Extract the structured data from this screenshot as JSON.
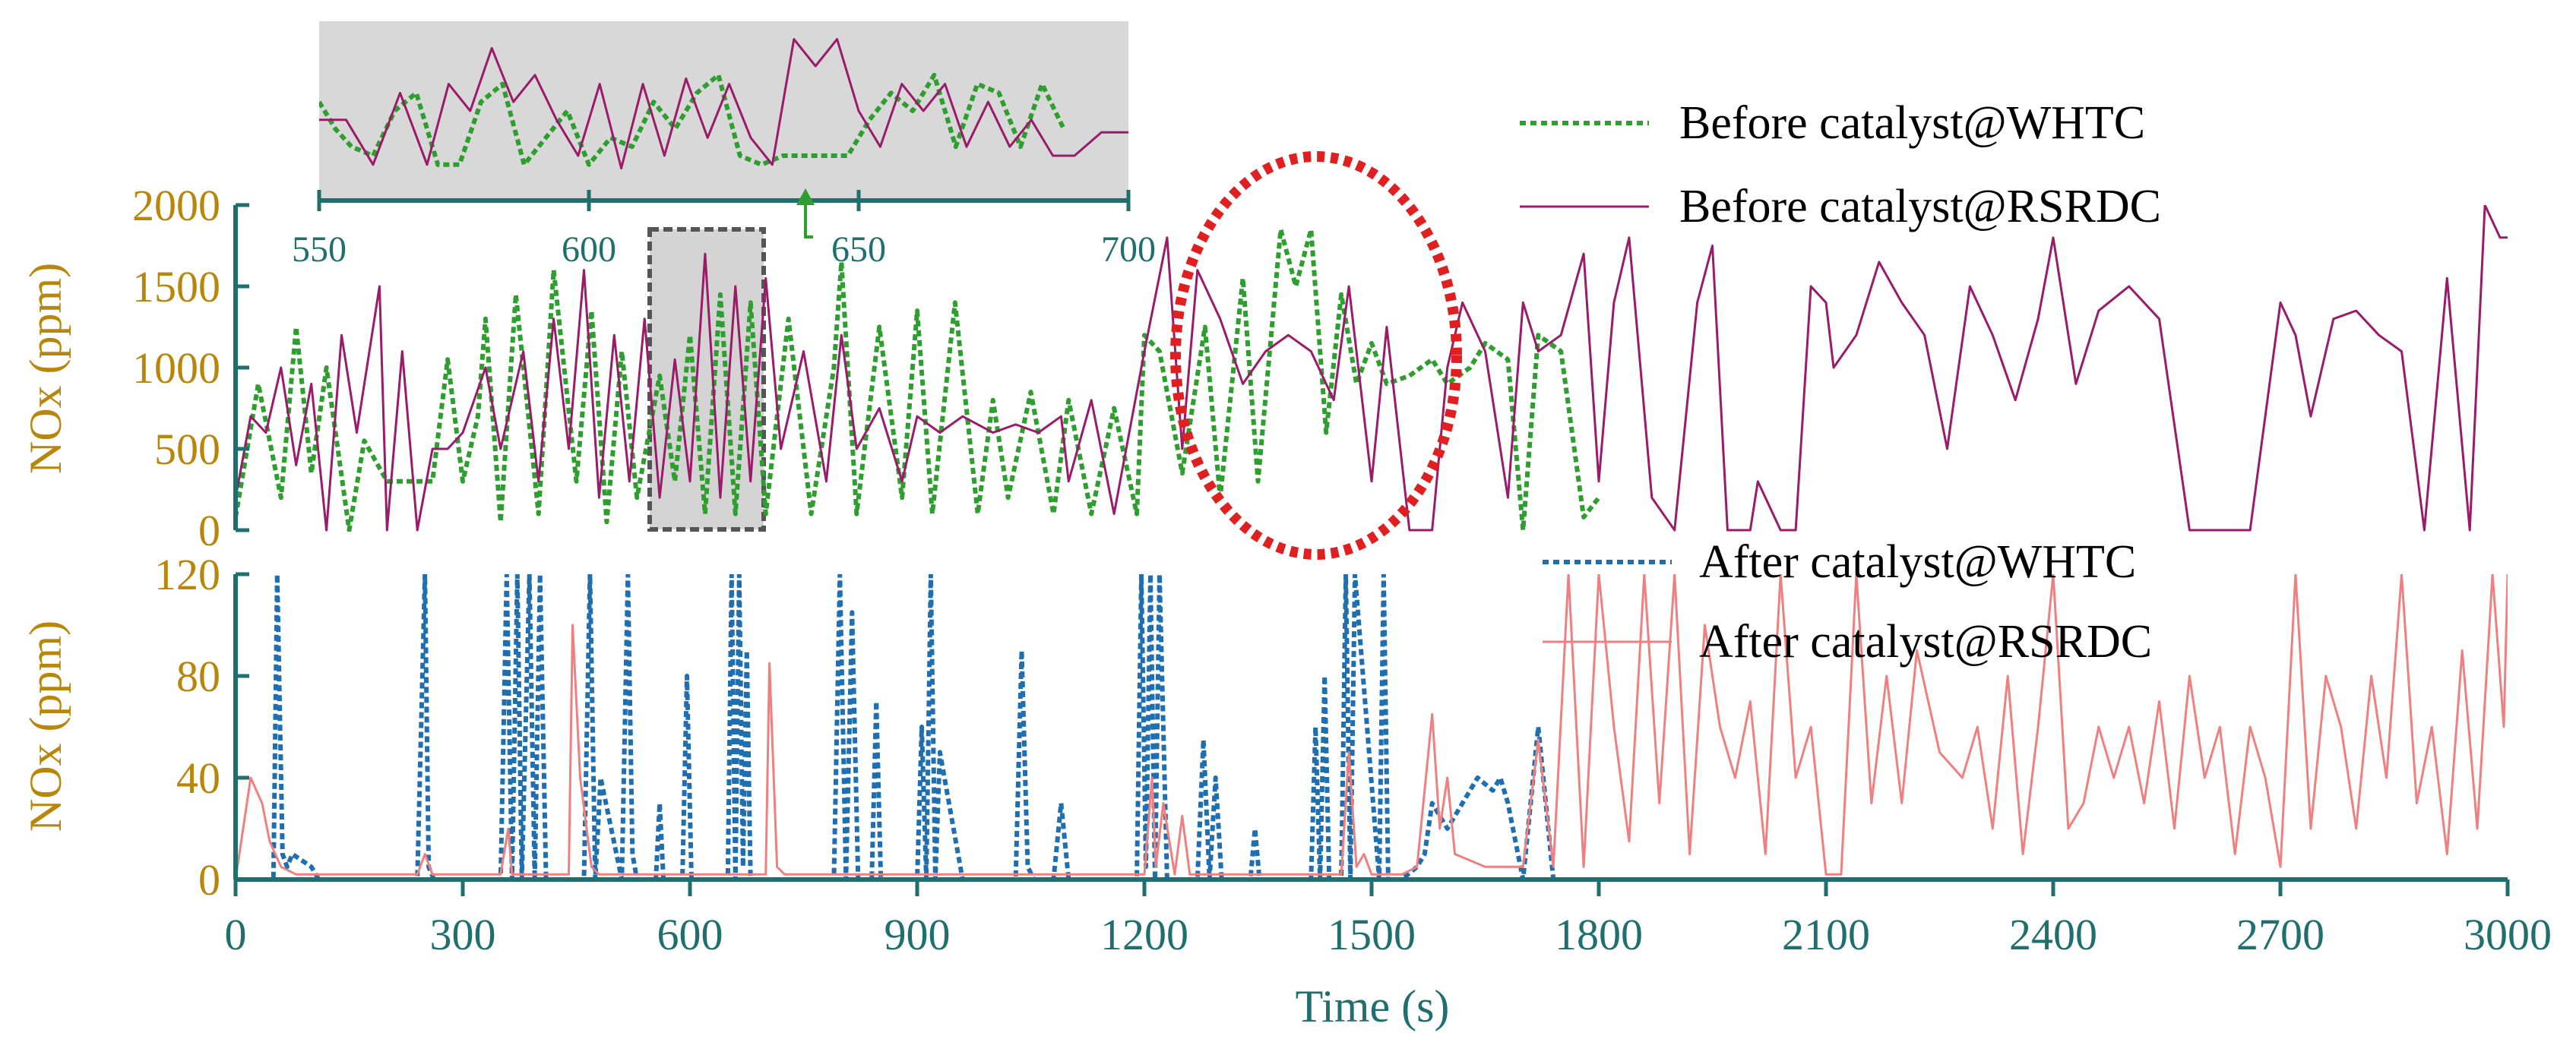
{
  "colors": {
    "whtc_before": "#2e9e2e",
    "rsrdc_before": "#9b1b6b",
    "whtc_after": "#1f6fb0",
    "rsrdc_after": "#f08080",
    "axis": "#1f6f6f",
    "ylabel": "#b8860b",
    "highlight": "#e02020",
    "inset_bg": "#d8d8d8"
  },
  "chart_data": [
    {
      "type": "line",
      "panel": "top",
      "ylabel": "NOx (ppm)",
      "ylim": [
        0,
        2000
      ],
      "yticks": [
        "0",
        "500",
        "1000",
        "1500",
        "2000"
      ],
      "xlim": [
        0,
        3000
      ],
      "series": [
        {
          "name": "Before catalyst@WHTC",
          "style": "dotted",
          "x": [
            0,
            30,
            60,
            80,
            100,
            120,
            150,
            170,
            200,
            230,
            260,
            280,
            300,
            320,
            330,
            350,
            370,
            400,
            420,
            450,
            470,
            490,
            510,
            530,
            560,
            580,
            600,
            620,
            640,
            660,
            680,
            700,
            730,
            760,
            790,
            800,
            820,
            850,
            880,
            900,
            920,
            950,
            980,
            1000,
            1020,
            1050,
            1080,
            1100,
            1130,
            1160,
            1190,
            1200,
            1220,
            1250,
            1280,
            1300,
            1330,
            1350,
            1380,
            1400,
            1420,
            1440,
            1460,
            1480,
            1500,
            1520,
            1550,
            1580,
            1600,
            1630,
            1650,
            1680,
            1700,
            1720,
            1750,
            1780,
            1800
          ],
          "y": [
            80,
            900,
            200,
            1250,
            350,
            1000,
            0,
            550,
            300,
            300,
            300,
            1050,
            300,
            700,
            1300,
            50,
            1450,
            100,
            1600,
            300,
            1350,
            50,
            1100,
            200,
            950,
            300,
            1200,
            100,
            1450,
            100,
            1400,
            100,
            1300,
            100,
            1000,
            1650,
            100,
            1250,
            200,
            1350,
            100,
            1400,
            100,
            800,
            200,
            850,
            100,
            800,
            100,
            750,
            100,
            1200,
            1100,
            350,
            1250,
            200,
            1550,
            300,
            1850,
            1500,
            1850,
            600,
            1450,
            900,
            1150,
            900,
            950,
            1050,
            900,
            1000,
            1150,
            1050,
            0,
            1200,
            1100,
            80,
            200
          ]
        },
        {
          "name": "Before catalyst@RSRDC",
          "style": "solid",
          "x": [
            0,
            20,
            40,
            60,
            80,
            100,
            120,
            140,
            160,
            190,
            200,
            220,
            240,
            260,
            280,
            300,
            330,
            350,
            380,
            400,
            420,
            440,
            460,
            480,
            500,
            520,
            540,
            560,
            580,
            600,
            620,
            640,
            660,
            680,
            700,
            720,
            750,
            780,
            800,
            820,
            850,
            880,
            900,
            930,
            960,
            1000,
            1030,
            1060,
            1090,
            1100,
            1130,
            1160,
            1200,
            1230,
            1250,
            1270,
            1300,
            1330,
            1360,
            1390,
            1420,
            1450,
            1470,
            1500,
            1520,
            1550,
            1580,
            1600,
            1620,
            1650,
            1680,
            1700,
            1720,
            1750,
            1780,
            1800,
            1820,
            1840,
            1870,
            1900,
            1930,
            1950,
            1970,
            2000,
            2010,
            2040,
            2060,
            2080,
            2100,
            2110,
            2140,
            2170,
            2200,
            2230,
            2260,
            2290,
            2320,
            2350,
            2380,
            2400,
            2430,
            2460,
            2500,
            2540,
            2580,
            2620,
            2660,
            2700,
            2720,
            2740,
            2770,
            2800,
            2830,
            2860,
            2890,
            2920,
            2950,
            2970,
            2990,
            3000
          ],
          "y": [
            200,
            700,
            600,
            1000,
            400,
            900,
            0,
            1200,
            600,
            1500,
            0,
            1100,
            0,
            500,
            500,
            600,
            1000,
            500,
            1100,
            300,
            1300,
            500,
            1600,
            200,
            1200,
            300,
            1300,
            200,
            1050,
            300,
            1700,
            200,
            1500,
            300,
            1550,
            500,
            1100,
            300,
            1200,
            500,
            750,
            300,
            700,
            600,
            700,
            600,
            650,
            600,
            700,
            300,
            800,
            100,
            1100,
            1800,
            500,
            1600,
            1300,
            900,
            1100,
            1200,
            1100,
            800,
            1500,
            300,
            1250,
            0,
            0,
            1000,
            1400,
            1100,
            200,
            1400,
            1100,
            1200,
            1700,
            300,
            1400,
            1800,
            200,
            0,
            1400,
            1750,
            0,
            0,
            300,
            0,
            0,
            1500,
            1400,
            1000,
            1200,
            1650,
            1400,
            1200,
            500,
            1500,
            1200,
            800,
            1300,
            1800,
            900,
            1350,
            1500,
            1300,
            0,
            0,
            0,
            1400,
            1200,
            700,
            1300,
            1350,
            1200,
            1100,
            0,
            1550,
            0,
            2000,
            1800,
            1800
          ]
        }
      ],
      "inset": {
        "xlim": [
          550,
          700
        ],
        "xticks": [
          "550",
          "600",
          "650",
          "700"
        ],
        "series": [
          {
            "name": "Before catalyst@WHTC",
            "style": "dotted",
            "x": [
              550,
              553,
              556,
              560,
              564,
              568,
              572,
              576,
              580,
              584,
              588,
              592,
              596,
              600,
              604,
              608,
              612,
              616,
              620,
              624,
              628,
              632,
              636,
              640,
              644,
              648,
              652,
              656,
              660,
              664,
              668,
              672,
              676,
              680,
              684,
              688
            ],
            "y": [
              5.5,
              4.0,
              3.0,
              2.5,
              5.0,
              6.0,
              2.0,
              2.0,
              5.5,
              6.5,
              2.0,
              3.5,
              5.0,
              2.0,
              3.5,
              3.0,
              5.5,
              4.0,
              6.0,
              7.0,
              2.5,
              2.0,
              2.5,
              2.5,
              2.5,
              2.5,
              4.5,
              6.0,
              5.0,
              7.0,
              3.0,
              6.5,
              6.0,
              3.0,
              6.5,
              4.0
            ]
          },
          {
            "name": "Before catalyst@RSRDC",
            "style": "solid",
            "x": [
              550,
              555,
              560,
              565,
              570,
              574,
              578,
              582,
              586,
              590,
              594,
              598,
              602,
              606,
              610,
              614,
              618,
              622,
              626,
              630,
              634,
              638,
              642,
              646,
              650,
              654,
              658,
              662,
              666,
              670,
              674,
              678,
              682,
              686,
              690,
              695,
              700
            ],
            "y": [
              4.5,
              4.5,
              2.0,
              6.0,
              2.0,
              6.5,
              5.0,
              8.5,
              5.5,
              7.0,
              4.5,
              2.5,
              6.5,
              1.8,
              6.5,
              2.5,
              6.8,
              3.5,
              6.5,
              3.5,
              2.0,
              9.0,
              7.5,
              9.0,
              5.0,
              3.0,
              6.5,
              5.0,
              6.5,
              3.0,
              5.5,
              3.0,
              4.5,
              2.5,
              2.5,
              3.8,
              3.8
            ]
          }
        ]
      }
    },
    {
      "type": "line",
      "panel": "bottom",
      "ylabel": "NOx (ppm)",
      "ylim": [
        0,
        120
      ],
      "yticks": [
        "0",
        "40",
        "80",
        "120"
      ],
      "xlabel": "Time (s)",
      "xlim": [
        0,
        3000
      ],
      "xticks": [
        "0",
        "300",
        "600",
        "900",
        "1200",
        "1500",
        "1800",
        "2100",
        "2400",
        "2700",
        "3000"
      ],
      "series": [
        {
          "name": "After catalyst@WHTC",
          "style": "dotted",
          "x": [
            0,
            50,
            55,
            62,
            68,
            75,
            100,
            110,
            240,
            250,
            255,
            262,
            350,
            358,
            365,
            372,
            378,
            388,
            395,
            402,
            410,
            460,
            468,
            475,
            482,
            510,
            518,
            524,
            530,
            555,
            560,
            565,
            590,
            596,
            602,
            630,
            650,
            655,
            660,
            665,
            670,
            675,
            680,
            700,
            790,
            798,
            806,
            814,
            822,
            840,
            846,
            852,
            900,
            906,
            912,
            918,
            924,
            930,
            960,
            1030,
            1038,
            1046,
            1054,
            1080,
            1090,
            1100,
            1190,
            1196,
            1202,
            1208,
            1214,
            1220,
            1230,
            1270,
            1278,
            1286,
            1294,
            1302,
            1340,
            1346,
            1352,
            1420,
            1426,
            1432,
            1438,
            1444,
            1450,
            1460,
            1466,
            1472,
            1478,
            1510,
            1516,
            1522,
            1540,
            1560,
            1570,
            1580,
            1600,
            1620,
            1640,
            1660,
            1670,
            1680,
            1700,
            1720,
            1740,
            1760,
            1800
          ],
          "y": [
            0,
            0,
            120,
            10,
            5,
            10,
            5,
            0,
            0,
            120,
            5,
            0,
            0,
            120,
            0,
            120,
            0,
            120,
            0,
            120,
            0,
            0,
            120,
            0,
            40,
            0,
            120,
            10,
            0,
            0,
            30,
            0,
            0,
            80,
            0,
            0,
            0,
            120,
            0,
            120,
            5,
            90,
            0,
            0,
            0,
            120,
            0,
            105,
            0,
            0,
            70,
            0,
            0,
            60,
            0,
            120,
            0,
            50,
            0,
            0,
            90,
            5,
            0,
            0,
            30,
            0,
            0,
            120,
            5,
            120,
            0,
            120,
            0,
            0,
            55,
            0,
            40,
            0,
            0,
            20,
            0,
            0,
            60,
            0,
            80,
            0,
            0,
            0,
            120,
            0,
            120,
            0,
            120,
            0,
            0,
            5,
            10,
            30,
            20,
            30,
            40,
            35,
            40,
            30,
            0,
            60,
            0,
            0,
            0
          ]
        },
        {
          "name": "After catalyst@RSRDC",
          "style": "solid",
          "x": [
            0,
            20,
            35,
            45,
            60,
            80,
            100,
            240,
            250,
            260,
            300,
            350,
            360,
            365,
            440,
            445,
            455,
            470,
            480,
            700,
            705,
            715,
            725,
            1200,
            1210,
            1215,
            1225,
            1240,
            1250,
            1260,
            1300,
            1460,
            1470,
            1480,
            1490,
            1500,
            1540,
            1560,
            1580,
            1590,
            1600,
            1610,
            1650,
            1700,
            1720,
            1740,
            1760,
            1780,
            1800,
            1820,
            1840,
            1860,
            1880,
            1900,
            1920,
            1940,
            1960,
            1980,
            2000,
            2020,
            2040,
            2060,
            2080,
            2100,
            2110,
            2120,
            2140,
            2160,
            2180,
            2200,
            2220,
            2250,
            2280,
            2300,
            2320,
            2340,
            2360,
            2380,
            2400,
            2420,
            2440,
            2460,
            2480,
            2500,
            2520,
            2540,
            2560,
            2580,
            2600,
            2620,
            2640,
            2660,
            2680,
            2700,
            2720,
            2740,
            2760,
            2780,
            2800,
            2820,
            2840,
            2860,
            2880,
            2900,
            2920,
            2940,
            2960,
            2980,
            2995,
            3000
          ],
          "y": [
            0,
            40,
            30,
            15,
            5,
            2,
            2,
            2,
            10,
            2,
            2,
            2,
            20,
            2,
            2,
            100,
            40,
            5,
            2,
            2,
            85,
            5,
            2,
            2,
            40,
            5,
            30,
            2,
            25,
            2,
            2,
            2,
            50,
            5,
            10,
            2,
            2,
            5,
            65,
            20,
            40,
            10,
            5,
            5,
            55,
            5,
            120,
            5,
            120,
            60,
            15,
            120,
            30,
            120,
            10,
            100,
            60,
            40,
            70,
            10,
            120,
            40,
            60,
            2,
            2,
            2,
            120,
            30,
            80,
            30,
            90,
            50,
            40,
            60,
            20,
            80,
            10,
            60,
            120,
            20,
            30,
            60,
            40,
            60,
            30,
            70,
            20,
            80,
            40,
            60,
            10,
            60,
            40,
            5,
            120,
            20,
            80,
            60,
            20,
            80,
            40,
            120,
            30,
            60,
            10,
            90,
            20,
            120,
            60,
            120
          ]
        }
      ]
    }
  ]
}
